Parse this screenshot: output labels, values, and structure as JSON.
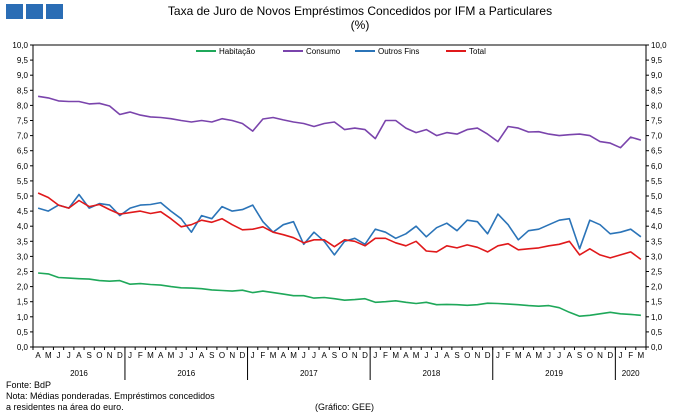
{
  "title": "Taxa de Juro de Novos Empréstimos Concedidos por IFM a Particulares",
  "subtitle": "(%)",
  "footer": {
    "source": "Fonte: BdP",
    "note_line1": "Nota: Médias ponderadas.  Empréstimos concedidos",
    "note_line2": "a residentes na área do euro.",
    "credit": "(Gráfico: GEE)"
  },
  "colors": {
    "habitacao": "#1fa85a",
    "consumo": "#7a44ac",
    "outros_fins": "#2b74b8",
    "total": "#e0191b",
    "logo": "#2a6db5"
  },
  "chart_data": {
    "type": "line",
    "title": "Taxa de Juro de Novos Empréstimos Concedidos por IFM a Particulares",
    "subtitle": "(%)",
    "ylim": [
      0,
      10
    ],
    "y_ticks": [
      "0,0",
      "0,5",
      "1,0",
      "1,5",
      "2,0",
      "2,5",
      "3,0",
      "3,5",
      "4,0",
      "4,5",
      "5,0",
      "5,5",
      "6,0",
      "6,5",
      "7,0",
      "7,5",
      "8,0",
      "8,5",
      "9,0",
      "9,5",
      "10,0"
    ],
    "grid": false,
    "legend": "top",
    "categories": [
      "A",
      "M",
      "J",
      "J",
      "A",
      "S",
      "O",
      "N",
      "D",
      "J",
      "F",
      "M",
      "A",
      "M",
      "J",
      "J",
      "A",
      "S",
      "O",
      "N",
      "D",
      "J",
      "F",
      "M",
      "A",
      "M",
      "J",
      "J",
      "A",
      "S",
      "O",
      "N",
      "D",
      "J",
      "F",
      "M",
      "A",
      "M",
      "J",
      "J",
      "A",
      "S",
      "O",
      "N",
      "D",
      "J",
      "F",
      "M",
      "A",
      "M",
      "J",
      "J",
      "A",
      "S",
      "O",
      "N",
      "D",
      "J",
      "F",
      "M"
    ],
    "year_labels": [
      {
        "label": "2016",
        "start": 0,
        "end": 8
      },
      {
        "label": "2016",
        "start": 9,
        "end": 20
      },
      {
        "label": "2017",
        "start": 21,
        "end": 32
      },
      {
        "label": "2018",
        "start": 33,
        "end": 44
      },
      {
        "label": "2019",
        "start": 45,
        "end": 56
      },
      {
        "label": "2020",
        "start": 57,
        "end": 59
      }
    ],
    "series": [
      {
        "name": "Habitação",
        "color": "#1fa85a",
        "values": [
          2.45,
          2.42,
          2.3,
          2.28,
          2.26,
          2.25,
          2.2,
          2.18,
          2.2,
          2.08,
          2.1,
          2.07,
          2.05,
          2.0,
          1.96,
          1.95,
          1.93,
          1.89,
          1.87,
          1.85,
          1.88,
          1.8,
          1.85,
          1.8,
          1.75,
          1.7,
          1.7,
          1.62,
          1.64,
          1.6,
          1.55,
          1.57,
          1.6,
          1.48,
          1.5,
          1.53,
          1.48,
          1.44,
          1.48,
          1.4,
          1.41,
          1.4,
          1.38,
          1.4,
          1.45,
          1.44,
          1.42,
          1.4,
          1.37,
          1.35,
          1.37,
          1.3,
          1.15,
          1.02,
          1.05,
          1.1,
          1.15,
          1.1,
          1.08,
          1.05
        ]
      },
      {
        "name": "Consumo",
        "color": "#7a44ac",
        "values": [
          8.3,
          8.25,
          8.15,
          8.13,
          8.13,
          8.05,
          8.07,
          7.98,
          7.7,
          7.78,
          7.68,
          7.62,
          7.6,
          7.56,
          7.5,
          7.45,
          7.5,
          7.45,
          7.56,
          7.5,
          7.4,
          7.15,
          7.55,
          7.6,
          7.52,
          7.45,
          7.4,
          7.3,
          7.4,
          7.45,
          7.2,
          7.25,
          7.2,
          6.9,
          7.5,
          7.5,
          7.25,
          7.1,
          7.2,
          7.0,
          7.1,
          7.05,
          7.2,
          7.25,
          7.05,
          6.8,
          7.3,
          7.25,
          7.12,
          7.13,
          7.05,
          7.0,
          7.03,
          7.05,
          7.0,
          6.8,
          6.75,
          6.6,
          6.95,
          6.85
        ]
      },
      {
        "name": "Outros Fins",
        "color": "#2b74b8",
        "values": [
          4.6,
          4.5,
          4.7,
          4.6,
          5.05,
          4.6,
          4.75,
          4.7,
          4.35,
          4.6,
          4.7,
          4.72,
          4.78,
          4.5,
          4.25,
          3.8,
          4.35,
          4.25,
          4.65,
          4.5,
          4.55,
          4.7,
          4.15,
          3.8,
          4.05,
          4.15,
          3.4,
          3.8,
          3.5,
          3.05,
          3.5,
          3.6,
          3.4,
          3.9,
          3.8,
          3.6,
          3.75,
          4.0,
          3.65,
          3.95,
          4.1,
          3.85,
          4.2,
          4.15,
          3.75,
          4.4,
          4.05,
          3.55,
          3.85,
          3.9,
          4.05,
          4.2,
          4.25,
          3.25,
          4.2,
          4.05,
          3.75,
          3.8,
          3.9,
          3.65
        ]
      },
      {
        "name": "Total",
        "color": "#e0191b",
        "values": [
          5.1,
          4.95,
          4.7,
          4.6,
          4.85,
          4.65,
          4.72,
          4.55,
          4.4,
          4.45,
          4.5,
          4.42,
          4.48,
          4.25,
          3.98,
          4.05,
          4.2,
          4.13,
          4.25,
          4.05,
          3.88,
          3.9,
          3.98,
          3.8,
          3.72,
          3.62,
          3.45,
          3.55,
          3.55,
          3.32,
          3.55,
          3.5,
          3.35,
          3.6,
          3.6,
          3.45,
          3.35,
          3.5,
          3.18,
          3.15,
          3.35,
          3.28,
          3.38,
          3.3,
          3.15,
          3.35,
          3.42,
          3.22,
          3.25,
          3.28,
          3.35,
          3.4,
          3.5,
          3.05,
          3.25,
          3.05,
          2.95,
          3.05,
          3.15,
          2.9
        ]
      }
    ]
  }
}
